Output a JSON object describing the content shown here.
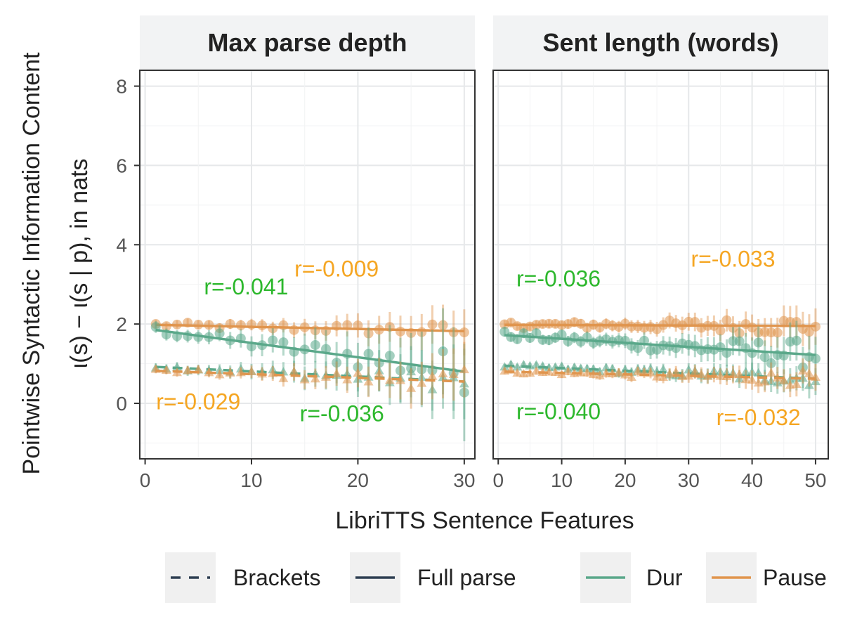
{
  "chart_data": {
    "type": "scatter",
    "ylabel_line1": "Pointwise Syntactic Information Content",
    "ylabel_line2": "ι(s) − ι(s | p), in nats",
    "xlabel": "LibriTTS Sentence Features",
    "ylim": [
      -1.4,
      8.4
    ],
    "yticks": [
      0,
      2,
      4,
      6,
      8
    ],
    "grid": true,
    "legend_position": "bottom",
    "legend": [
      {
        "label": "Brackets",
        "style": "dashed",
        "color": "#2f3f52"
      },
      {
        "label": "Full parse",
        "style": "solid",
        "color": "#2f3f52"
      },
      {
        "label": "Dur",
        "style": "solid",
        "color": "#5aa88a"
      },
      {
        "label": "Pause",
        "style": "solid",
        "color": "#e0954e"
      }
    ],
    "colors": {
      "dur": "#5aa88a",
      "pause": "#e0954e",
      "dur_text": "#2db82d",
      "pause_text": "#f5a623"
    },
    "panels": [
      {
        "strip": "Max parse depth",
        "xlim": [
          -0.5,
          31
        ],
        "xticks": [
          0,
          10,
          20,
          30
        ],
        "x_range": [
          1,
          30
        ],
        "series": [
          {
            "measure": "pause",
            "parse": "full",
            "trend": [
              1.98,
              1.82
            ],
            "jitter": 0.07,
            "noise_growth": 0.5,
            "err": 0.1,
            "err_growth": 1.2
          },
          {
            "measure": "dur",
            "parse": "full",
            "trend": [
              1.85,
              0.8
            ],
            "jitter": 0.12,
            "noise_growth": 0.9,
            "err": 0.15,
            "err_growth": 1.8
          },
          {
            "measure": "dur",
            "parse": "brackets",
            "trend": [
              0.92,
              0.55
            ],
            "jitter": 0.06,
            "noise_growth": 1.0,
            "err": 0.12,
            "err_growth": 1.6
          },
          {
            "measure": "pause",
            "parse": "brackets",
            "trend": [
              0.82,
              0.55
            ],
            "jitter": 0.06,
            "noise_growth": 1.0,
            "err": 0.1,
            "err_growth": 1.5
          }
        ],
        "annotations": [
          {
            "text": "r=-0.041",
            "color_key": "dur_text",
            "x": 9.5,
            "y": 2.75
          },
          {
            "text": "r=-0.009",
            "color_key": "pause_text",
            "x": 18,
            "y": 3.2
          },
          {
            "text": "r=-0.029",
            "color_key": "pause_text",
            "x": 5,
            "y": -0.15
          },
          {
            "text": "r=-0.036",
            "color_key": "dur_text",
            "x": 18.5,
            "y": -0.45
          }
        ]
      },
      {
        "strip": "Sent length (words)",
        "xlim": [
          -0.8,
          52
        ],
        "xticks": [
          0,
          10,
          20,
          30,
          40,
          50
        ],
        "x_range": [
          1,
          50
        ],
        "series": [
          {
            "measure": "pause",
            "parse": "full",
            "trend": [
              1.98,
              1.95
            ],
            "jitter": 0.08,
            "noise_growth": 0.6,
            "err": 0.1,
            "err_growth": 0.9
          },
          {
            "measure": "dur",
            "parse": "full",
            "trend": [
              1.72,
              1.22
            ],
            "jitter": 0.1,
            "noise_growth": 0.7,
            "err": 0.12,
            "err_growth": 0.9
          },
          {
            "measure": "dur",
            "parse": "brackets",
            "trend": [
              0.95,
              0.62
            ],
            "jitter": 0.05,
            "noise_growth": 0.8,
            "err": 0.08,
            "err_growth": 0.8
          },
          {
            "measure": "pause",
            "parse": "brackets",
            "trend": [
              0.8,
              0.62
            ],
            "jitter": 0.05,
            "noise_growth": 0.8,
            "err": 0.08,
            "err_growth": 0.8
          }
        ],
        "annotations": [
          {
            "text": "r=-0.036",
            "color_key": "dur_text",
            "x": 9.5,
            "y": 2.95
          },
          {
            "text": "r=-0.033",
            "color_key": "pause_text",
            "x": 37,
            "y": 3.45
          },
          {
            "text": "r=-0.040",
            "color_key": "dur_text",
            "x": 9.5,
            "y": -0.4
          },
          {
            "text": "r=-0.032",
            "color_key": "pause_text",
            "x": 41,
            "y": -0.55
          }
        ]
      }
    ]
  }
}
